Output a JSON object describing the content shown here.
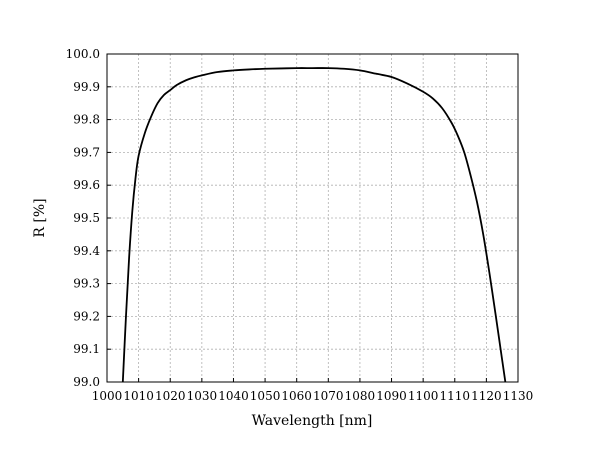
{
  "chart_data": {
    "type": "line",
    "title": "",
    "xlabel": "Wavelength [nm]",
    "ylabel": "R [%]",
    "xlim": [
      1000,
      1130
    ],
    "ylim": [
      99.0,
      100.0
    ],
    "x_ticks": [
      1000,
      1010,
      1020,
      1030,
      1040,
      1050,
      1060,
      1070,
      1080,
      1090,
      1100,
      1110,
      1120,
      1130
    ],
    "y_ticks": [
      "99.0",
      "99.1",
      "99.2",
      "99.3",
      "99.4",
      "99.5",
      "99.6",
      "99.7",
      "99.8",
      "99.9",
      "100.0"
    ],
    "grid": true,
    "legend": "none",
    "series": [
      {
        "x": [
          1005,
          1006,
          1007,
          1008,
          1009,
          1010,
          1012,
          1014,
          1016,
          1018,
          1020,
          1022,
          1025,
          1028,
          1030,
          1035,
          1040,
          1045,
          1050,
          1055,
          1060,
          1065,
          1070,
          1075,
          1080,
          1085,
          1090,
          1095,
          1100,
          1103,
          1106,
          1109,
          1111,
          1113,
          1115,
          1117,
          1119,
          1121,
          1123,
          1124.5,
          1126
        ],
        "y": [
          99.0,
          99.2,
          99.38,
          99.52,
          99.62,
          99.69,
          99.76,
          99.81,
          99.85,
          99.875,
          99.89,
          99.905,
          99.92,
          99.93,
          99.935,
          99.945,
          99.95,
          99.953,
          99.955,
          99.956,
          99.957,
          99.957,
          99.957,
          99.955,
          99.95,
          99.94,
          99.93,
          99.91,
          99.885,
          99.865,
          99.835,
          99.79,
          99.75,
          99.7,
          99.63,
          99.55,
          99.45,
          99.33,
          99.2,
          99.1,
          99.0
        ]
      }
    ]
  }
}
